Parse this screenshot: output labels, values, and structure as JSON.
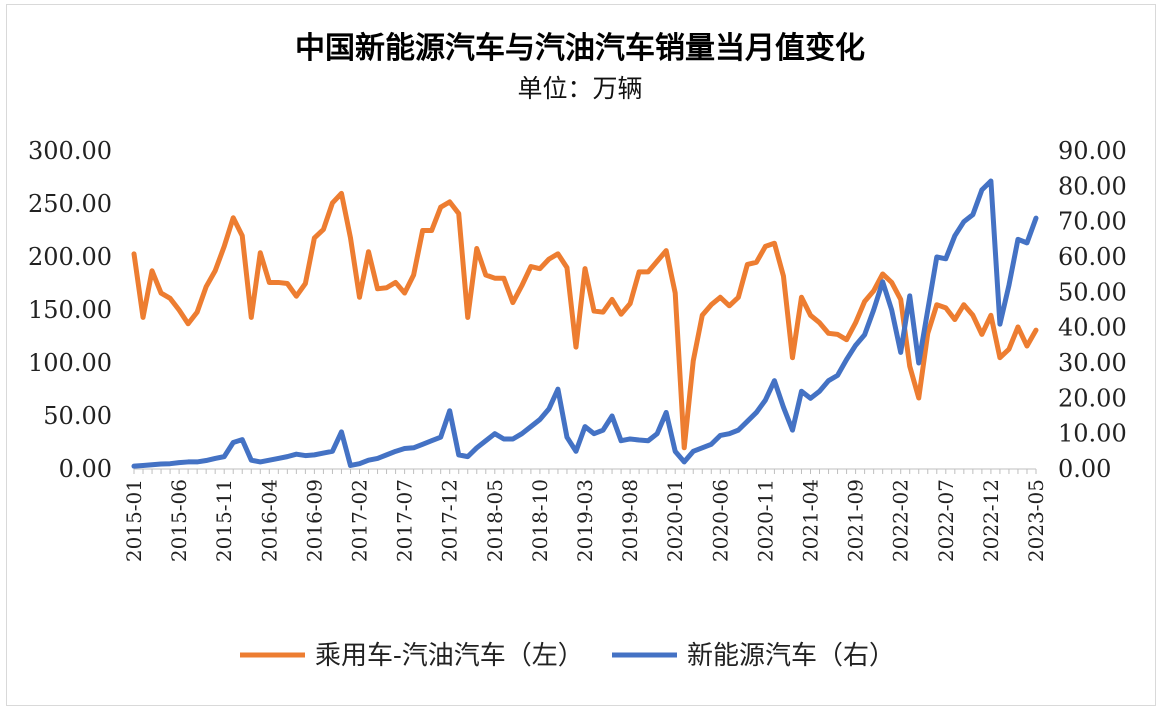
{
  "chart_data": {
    "type": "line",
    "title": "中国新能源汽车与汽油汽车销量当月值变化",
    "subtitle": "单位：万辆",
    "ylim_left": [
      0,
      300
    ],
    "ylim_right": [
      0,
      90
    ],
    "left_ticks": [
      "0.00",
      "50.00",
      "100.00",
      "150.00",
      "200.00",
      "250.00",
      "300.00"
    ],
    "right_ticks": [
      "0.00",
      "10.00",
      "20.00",
      "30.00",
      "40.00",
      "50.00",
      "60.00",
      "70.00",
      "80.00",
      "90.00"
    ],
    "x_tick_labels": [
      "2015-01",
      "2015-06",
      "2015-11",
      "2016-04",
      "2016-09",
      "2017-02",
      "2017-07",
      "2017-12",
      "2018-05",
      "2018-10",
      "2019-03",
      "2019-08",
      "2020-01",
      "2020-06",
      "2020-11",
      "2021-04",
      "2021-09",
      "2022-02",
      "2022-07",
      "2022-12",
      "2023-05"
    ],
    "series": [
      {
        "name": "乘用车-汽油汽车（左）",
        "axis": "left",
        "color": "#ED7D31",
        "values": [
          203,
          143,
          187,
          166,
          161,
          150,
          137,
          148,
          172,
          187,
          210,
          237,
          220,
          143,
          204,
          176,
          176,
          175,
          163,
          175,
          218,
          226,
          251,
          260,
          218,
          162,
          205,
          170,
          171,
          176,
          166,
          183,
          225,
          225,
          247,
          252,
          241,
          143,
          208,
          183,
          180,
          180,
          157,
          173,
          191,
          189,
          198,
          203,
          190,
          115,
          189,
          149,
          148,
          160,
          146,
          156,
          186,
          186,
          196,
          206,
          166,
          20,
          102,
          145,
          155,
          162,
          154,
          162,
          193,
          195,
          210,
          213,
          182,
          105,
          162,
          145,
          138,
          128,
          127,
          122,
          138,
          158,
          168,
          184,
          176,
          160,
          97,
          67,
          128,
          155,
          152,
          141,
          155,
          145,
          127,
          145,
          105,
          113,
          134,
          116,
          131
        ]
      },
      {
        "name": "新能源汽车（右）",
        "axis": "right",
        "color": "#4472C4",
        "values": [
          0.8,
          1.0,
          1.2,
          1.4,
          1.5,
          1.8,
          2.0,
          2.0,
          2.4,
          3.0,
          3.5,
          7.5,
          8.3,
          2.5,
          2.0,
          2.5,
          3.0,
          3.5,
          4.2,
          3.8,
          4.0,
          4.5,
          5.0,
          10.5,
          1.0,
          1.5,
          2.5,
          3.0,
          4.0,
          5.0,
          5.8,
          6.0,
          7.0,
          8.0,
          9.0,
          16.5,
          4.0,
          3.5,
          6.0,
          8.0,
          10.0,
          8.5,
          8.5,
          10.0,
          12.0,
          14.0,
          17.0,
          22.6,
          9.0,
          5.0,
          12.0,
          10.0,
          11.0,
          15.0,
          8.0,
          8.5,
          8.2,
          8.0,
          10.0,
          16.0,
          5.0,
          2.0,
          5.0,
          6.0,
          7.0,
          9.5,
          10.0,
          11.0,
          13.5,
          16.0,
          19.5,
          25.0,
          17.5,
          11.0,
          22.0,
          20.0,
          22.0,
          25.0,
          26.5,
          31.0,
          35.0,
          38.0,
          45.0,
          53.0,
          45.0,
          33.0,
          49.0,
          30.0,
          45.0,
          60.0,
          59.5,
          66.0,
          70.0,
          72.0,
          79.0,
          81.5,
          41.0,
          52.0,
          65.0,
          64.0,
          71.0
        ]
      }
    ]
  }
}
